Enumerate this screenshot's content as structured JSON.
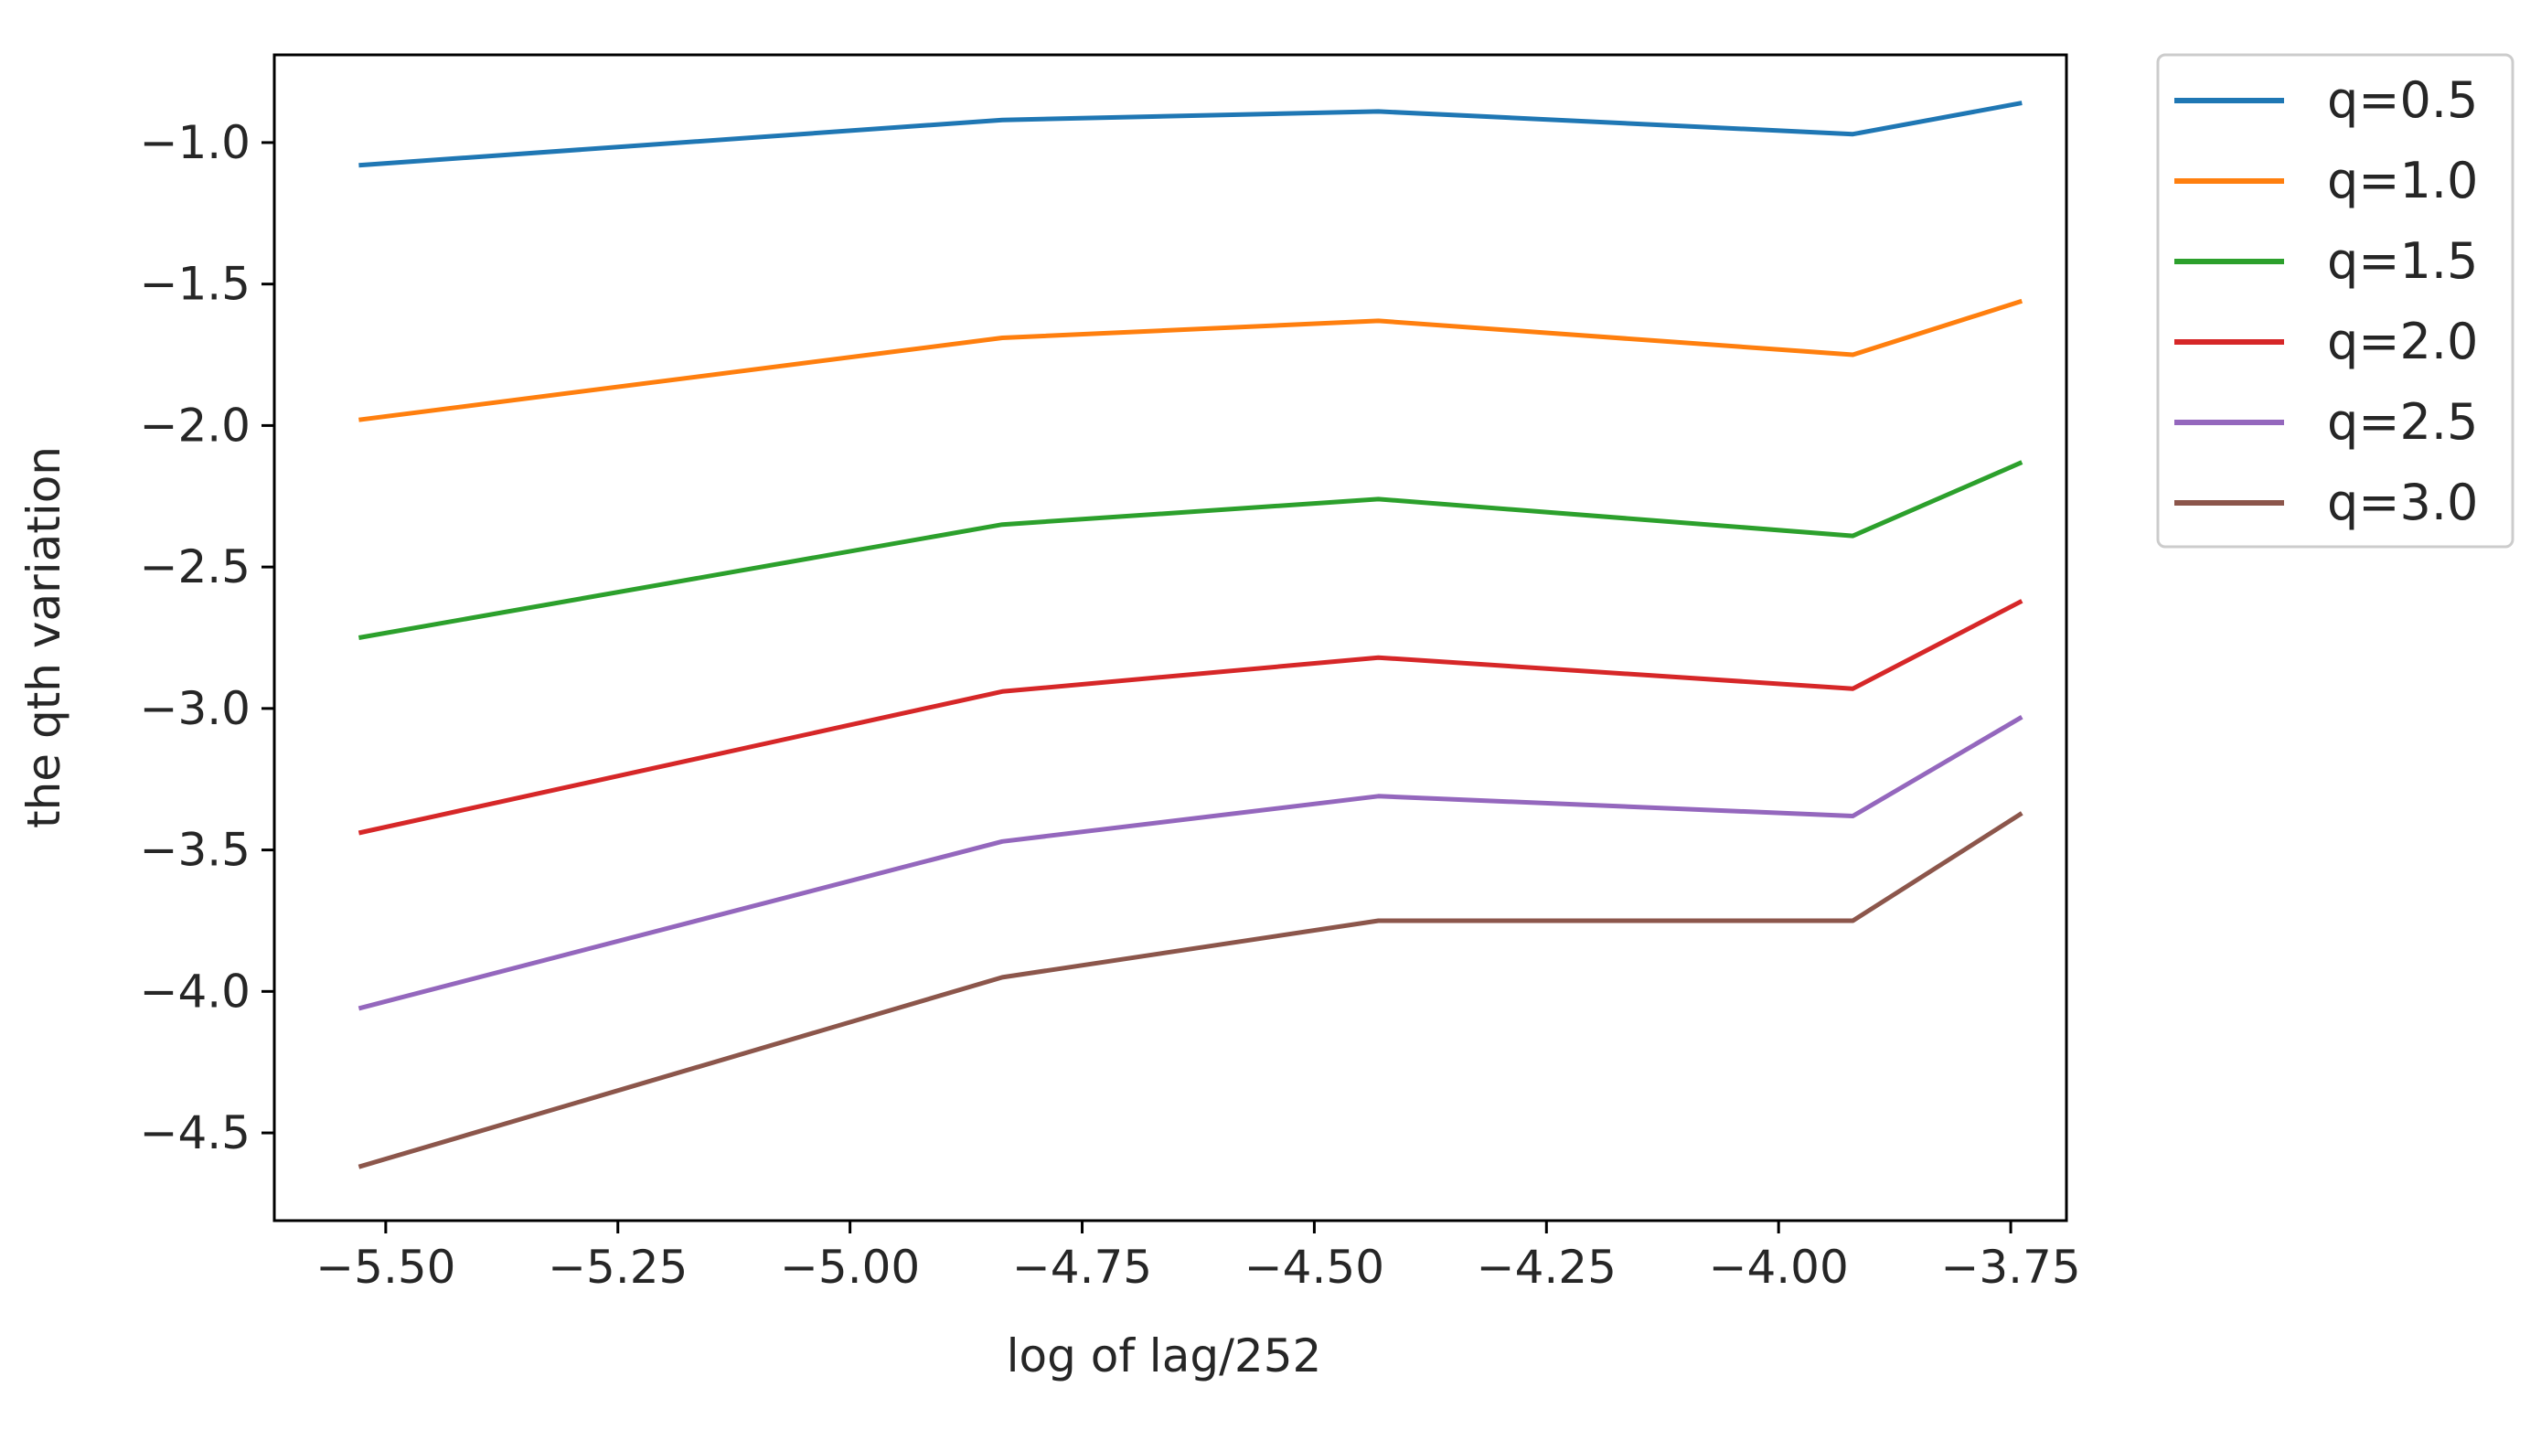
{
  "chart_data": {
    "type": "line",
    "title": "",
    "xlabel": "log of lag/252",
    "ylabel": "the qth variation",
    "xlim": [
      -5.62,
      -3.69
    ],
    "ylim": [
      -4.81,
      -0.69
    ],
    "x_ticks": [
      -5.5,
      -5.25,
      -5.0,
      -4.75,
      -4.5,
      -4.25,
      -4.0,
      -3.75
    ],
    "x_tick_labels": [
      "−5.50",
      "−5.25",
      "−5.00",
      "−4.75",
      "−4.50",
      "−4.25",
      "−4.00",
      "−3.75"
    ],
    "y_ticks": [
      -1.0,
      -1.5,
      -2.0,
      -2.5,
      -3.0,
      -3.5,
      -4.0,
      -4.5
    ],
    "y_tick_labels": [
      "−1.0",
      "−1.5",
      "−2.0",
      "−2.5",
      "−3.0",
      "−3.5",
      "−4.0",
      "−4.5"
    ],
    "grid": false,
    "legend_position": "outside-top-right",
    "x": [
      -5.529,
      -4.836,
      -4.431,
      -3.92,
      -3.738
    ],
    "series": [
      {
        "name": "q=0.5",
        "color": "#1f77b4",
        "values": [
          -1.08,
          -0.92,
          -0.89,
          -0.97,
          -0.86
        ]
      },
      {
        "name": "q=1.0",
        "color": "#ff7f0e",
        "values": [
          -1.98,
          -1.69,
          -1.63,
          -1.75,
          -1.56
        ]
      },
      {
        "name": "q=1.5",
        "color": "#2ca02c",
        "values": [
          -2.75,
          -2.35,
          -2.26,
          -2.39,
          -2.13
        ]
      },
      {
        "name": "q=2.0",
        "color": "#d62728",
        "values": [
          -3.44,
          -2.94,
          -2.82,
          -2.93,
          -2.62
        ]
      },
      {
        "name": "q=2.5",
        "color": "#9467bd",
        "values": [
          -4.06,
          -3.47,
          -3.31,
          -3.38,
          -3.03
        ]
      },
      {
        "name": "q=3.0",
        "color": "#8c564b",
        "values": [
          -4.62,
          -3.95,
          -3.75,
          -3.75,
          -3.37
        ]
      }
    ]
  }
}
